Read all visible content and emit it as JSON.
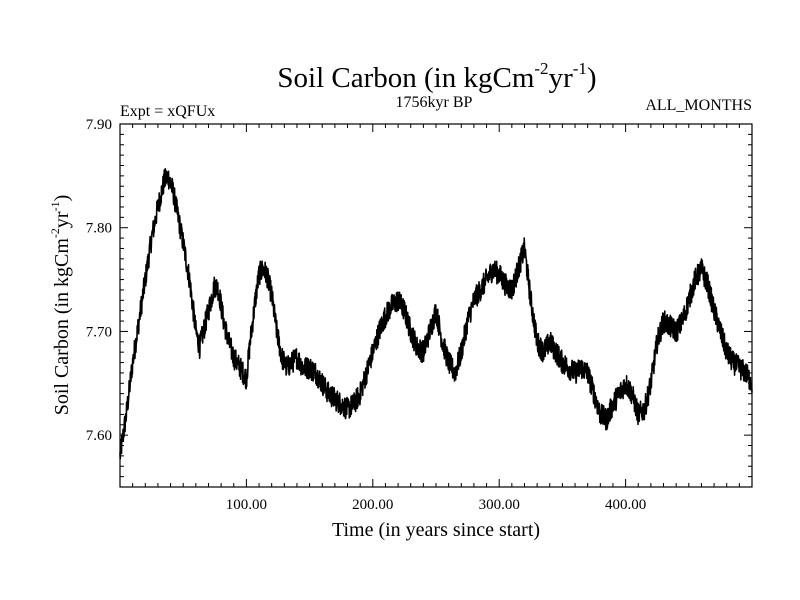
{
  "chart_data": {
    "type": "line",
    "title_main": "Soil Carbon (in kgCm",
    "title_sup1": "-2",
    "title_mid": "yr",
    "title_sup2": "-1",
    "title_end": ")",
    "subtitle_left": "Expt = xQFUx",
    "subtitle_center": "1756kyr BP",
    "subtitle_right": "ALL_MONTHS",
    "xlabel": "Time (in years since start)",
    "ylabel_main": "Soil Carbon (in kgCm",
    "ylabel_sup1": "-2",
    "ylabel_mid": "yr",
    "ylabel_sup2": "-1",
    "ylabel_end": ")",
    "xlim": [
      0,
      500
    ],
    "ylim": [
      7.55,
      7.9
    ],
    "x_ticks": [
      100,
      200,
      300,
      400
    ],
    "x_tick_labels": [
      "100.00",
      "200.00",
      "300.00",
      "400.00"
    ],
    "y_ticks": [
      7.6,
      7.7,
      7.8,
      7.9
    ],
    "y_tick_labels": [
      "7.60",
      "7.70",
      "7.80",
      "7.90"
    ],
    "series": [
      {
        "name": "Soil Carbon",
        "color": "#000000",
        "noise_amplitude": 0.011,
        "x": [
          0,
          5,
          10,
          15,
          20,
          25,
          30,
          35,
          38,
          42,
          46,
          50,
          55,
          60,
          63,
          67,
          70,
          75,
          78,
          82,
          86,
          90,
          95,
          100,
          103,
          107,
          110,
          113,
          116,
          120,
          124,
          128,
          132,
          136,
          140,
          145,
          150,
          155,
          160,
          165,
          170,
          175,
          180,
          185,
          190,
          195,
          200,
          205,
          210,
          215,
          220,
          225,
          230,
          235,
          240,
          245,
          250,
          255,
          260,
          265,
          270,
          275,
          280,
          285,
          290,
          295,
          300,
          305,
          310,
          315,
          320,
          325,
          330,
          335,
          340,
          345,
          350,
          355,
          360,
          365,
          370,
          375,
          380,
          385,
          390,
          395,
          400,
          405,
          410,
          415,
          420,
          425,
          430,
          435,
          440,
          445,
          450,
          455,
          460,
          465,
          470,
          475,
          480,
          485,
          490,
          495,
          500
        ],
        "y": [
          7.58,
          7.62,
          7.67,
          7.71,
          7.75,
          7.79,
          7.82,
          7.845,
          7.85,
          7.835,
          7.81,
          7.785,
          7.75,
          7.7,
          7.685,
          7.705,
          7.72,
          7.745,
          7.74,
          7.71,
          7.69,
          7.675,
          7.665,
          7.655,
          7.69,
          7.73,
          7.755,
          7.76,
          7.755,
          7.735,
          7.7,
          7.675,
          7.665,
          7.67,
          7.675,
          7.665,
          7.665,
          7.66,
          7.65,
          7.64,
          7.635,
          7.63,
          7.625,
          7.63,
          7.64,
          7.66,
          7.68,
          7.7,
          7.715,
          7.725,
          7.73,
          7.72,
          7.7,
          7.685,
          7.68,
          7.7,
          7.72,
          7.69,
          7.67,
          7.66,
          7.68,
          7.71,
          7.73,
          7.74,
          7.75,
          7.76,
          7.755,
          7.745,
          7.74,
          7.76,
          7.78,
          7.73,
          7.69,
          7.68,
          7.69,
          7.68,
          7.67,
          7.665,
          7.66,
          7.665,
          7.66,
          7.64,
          7.62,
          7.615,
          7.63,
          7.64,
          7.65,
          7.64,
          7.62,
          7.625,
          7.65,
          7.69,
          7.71,
          7.705,
          7.7,
          7.71,
          7.73,
          7.75,
          7.76,
          7.745,
          7.72,
          7.7,
          7.68,
          7.67,
          7.665,
          7.66,
          7.65
        ]
      }
    ]
  }
}
